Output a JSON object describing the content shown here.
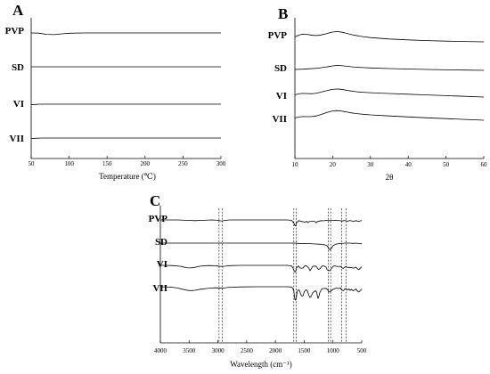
{
  "chart_data": [
    {
      "panel": "A",
      "type": "line",
      "xlabel": "Temperature (℃)",
      "ylabel": "",
      "xlim": [
        50,
        300
      ],
      "x_ticks": [
        "50",
        "100",
        "150",
        "200",
        "250",
        "300"
      ],
      "x_tick_values": [
        50,
        100,
        150,
        200,
        250,
        300
      ],
      "y_ticks_shown": false,
      "grid": false,
      "series": [
        {
          "name": "PVP",
          "x": [
            50,
            60,
            70,
            80,
            90,
            100,
            120,
            150,
            200,
            250,
            300
          ],
          "y": [
            0,
            -0.2,
            -1.6,
            -1.9,
            -1.0,
            -0.3,
            0,
            0,
            0,
            0,
            0
          ]
        },
        {
          "name": "SD",
          "x": [
            50,
            100,
            150,
            200,
            250,
            300
          ],
          "y": [
            0,
            0,
            0,
            0,
            0,
            0
          ]
        },
        {
          "name": "VI",
          "x": [
            50,
            55,
            60,
            100,
            150,
            200,
            250,
            300
          ],
          "y": [
            -0.5,
            -0.3,
            0,
            0,
            0,
            0,
            0,
            0
          ]
        },
        {
          "name": "VII",
          "x": [
            50,
            55,
            65,
            100,
            150,
            200,
            250,
            300
          ],
          "y": [
            -0.6,
            -0.3,
            0,
            0,
            0,
            0,
            0,
            0
          ]
        }
      ]
    },
    {
      "panel": "B",
      "type": "line",
      "xlabel": "2θ",
      "ylabel": "",
      "xlim": [
        10,
        60
      ],
      "x_ticks": [
        "10",
        "20",
        "30",
        "40",
        "50",
        "60"
      ],
      "x_tick_values": [
        10,
        20,
        30,
        40,
        50,
        60
      ],
      "y_ticks_shown": false,
      "grid": false,
      "series": [
        {
          "name": "PVP",
          "x": [
            10,
            11,
            12,
            13,
            14,
            15,
            16,
            17,
            18,
            19,
            20,
            21,
            22,
            23,
            24,
            25,
            26,
            27,
            28,
            30,
            35,
            40,
            45,
            50,
            55,
            60
          ],
          "y": [
            5.5,
            7.5,
            8.6,
            8.5,
            7.8,
            7.2,
            7.2,
            7.8,
            8.8,
            10.0,
            11.0,
            11.5,
            11.2,
            10.3,
            9.2,
            8.1,
            7.3,
            6.5,
            5.9,
            4.8,
            3.2,
            2.2,
            1.4,
            0.8,
            0.4,
            0
          ]
        },
        {
          "name": "SD",
          "x": [
            10,
            12,
            14,
            16,
            17,
            18,
            19,
            20,
            21,
            22,
            23,
            24,
            25,
            26,
            27,
            28,
            30,
            35,
            40,
            45,
            50,
            55,
            60
          ],
          "y": [
            1.0,
            1.3,
            1.8,
            2.4,
            3.0,
            3.6,
            4.3,
            5.0,
            5.5,
            5.4,
            5.0,
            4.5,
            4.0,
            3.6,
            3.3,
            3.1,
            2.7,
            2.0,
            1.5,
            1.0,
            0.6,
            0.3,
            0
          ]
        },
        {
          "name": "VI",
          "x": [
            10,
            11,
            12,
            13,
            14,
            15,
            16,
            17,
            18,
            19,
            20,
            21,
            22,
            23,
            24,
            25,
            26,
            27,
            28,
            30,
            35,
            40,
            45,
            50,
            55,
            60
          ],
          "y": [
            2.5,
            3.6,
            4.1,
            4.0,
            3.8,
            3.9,
            4.6,
            5.6,
            6.7,
            7.8,
            8.6,
            9.0,
            8.8,
            8.2,
            7.4,
            6.7,
            6.1,
            5.7,
            5.4,
            4.9,
            4.0,
            3.2,
            2.4,
            1.6,
            0.8,
            0
          ]
        },
        {
          "name": "VII",
          "x": [
            10,
            11,
            12,
            13,
            14,
            15,
            16,
            17,
            18,
            19,
            20,
            21,
            22,
            23,
            24,
            25,
            26,
            27,
            28,
            30,
            35,
            40,
            45,
            50,
            55,
            60
          ],
          "y": [
            2.5,
            3.6,
            4.1,
            4.0,
            4.0,
            4.3,
            5.2,
            6.5,
            8.0,
            9.4,
            10.4,
            10.8,
            10.5,
            9.8,
            9.0,
            8.2,
            7.6,
            7.1,
            6.7,
            6.0,
            4.8,
            3.7,
            2.7,
            1.8,
            0.9,
            0
          ]
        }
      ]
    },
    {
      "panel": "C",
      "type": "line",
      "xlabel": "Wavelength (cm⁻¹)",
      "ylabel": "",
      "xlim": [
        4000,
        500
      ],
      "x_ticks": [
        "4000",
        "3500",
        "3000",
        "2500",
        "2000",
        "1500",
        "1000",
        "500"
      ],
      "x_tick_values": [
        4000,
        3500,
        3000,
        2500,
        2000,
        1500,
        1000,
        500
      ],
      "y_ticks_shown": false,
      "grid": false,
      "reference_lines_x": [
        2980,
        2920,
        1680,
        1640,
        1080,
        1040,
        850,
        770
      ],
      "series": [
        {
          "name": "PVP",
          "x": [
            4000,
            3700,
            3500,
            3400,
            3300,
            3100,
            3000,
            2950,
            2920,
            2880,
            2800,
            2500,
            2200,
            2000,
            1800,
            1720,
            1680,
            1660,
            1650,
            1640,
            1600,
            1490,
            1460,
            1440,
            1420,
            1380,
            1320,
            1290,
            1270,
            1200,
            1170,
            1120,
            1080,
            1020,
            960,
            900,
            840,
            800,
            740,
            700,
            650,
            600,
            560,
            500
          ],
          "y": [
            0,
            0,
            -0.5,
            -0.8,
            -0.5,
            0,
            -0.4,
            -1.1,
            -1.0,
            -0.6,
            0,
            0,
            0,
            0,
            0,
            -0.4,
            -3.5,
            -6.5,
            -6.8,
            -4.0,
            -0.8,
            -2.5,
            -1.5,
            -3.0,
            -2.0,
            -1.5,
            -1.5,
            -3.2,
            -1.8,
            -0.8,
            -1.0,
            -0.5,
            -0.8,
            -0.6,
            -0.4,
            -0.6,
            -1.2,
            -0.6,
            -1.4,
            -0.6,
            -1.6,
            -0.8,
            -1.8,
            -0.6
          ]
        },
        {
          "name": "SD",
          "x": [
            4000,
            3500,
            3000,
            2500,
            2000,
            1800,
            1650,
            1600,
            1550,
            1500,
            1400,
            1300,
            1250,
            1200,
            1150,
            1100,
            1070,
            1050,
            1030,
            1000,
            950,
            900,
            850,
            800,
            700,
            650,
            600,
            550,
            500
          ],
          "y": [
            0,
            0,
            0,
            0,
            0,
            0,
            0,
            -0.3,
            -0.5,
            -0.4,
            -0.6,
            -1.0,
            -1.2,
            -1.4,
            -1.8,
            -3.0,
            -6.5,
            -7.5,
            -6.2,
            -3.0,
            -1.2,
            -0.6,
            -0.4,
            0,
            0,
            -0.3,
            0,
            -0.4,
            -0.8
          ]
        },
        {
          "name": "VI",
          "x": [
            4000,
            3800,
            3650,
            3600,
            3550,
            3500,
            3450,
            3400,
            3350,
            3300,
            3250,
            3150,
            3050,
            3000,
            2980,
            2950,
            2920,
            2880,
            2850,
            2800,
            2600,
            2300,
            2000,
            1800,
            1720,
            1690,
            1670,
            1660,
            1650,
            1630,
            1600,
            1580,
            1560,
            1520,
            1500,
            1490,
            1470,
            1450,
            1420,
            1400,
            1380,
            1350,
            1300,
            1280,
            1270,
            1250,
            1220,
            1200,
            1180,
            1150,
            1120,
            1100,
            1070,
            1050,
            1020,
            1000,
            980,
            960,
            940,
            900,
            870,
            850,
            820,
            800,
            780,
            760,
            740,
            720,
            700,
            680,
            650,
            620,
            600,
            580,
            550,
            520,
            500
          ],
          "y": [
            0,
            -0.2,
            -1.0,
            -1.8,
            -2.6,
            -2.9,
            -2.7,
            -2.2,
            -1.5,
            -0.9,
            -0.5,
            -0.2,
            -0.4,
            -0.8,
            -1.2,
            -1.0,
            -1.3,
            -1.0,
            -0.6,
            -0.3,
            0,
            0,
            0,
            0,
            -0.5,
            -3.5,
            -6.8,
            -7.5,
            -7.0,
            -2.5,
            -0.6,
            -2.5,
            -3.2,
            -3.0,
            -1.2,
            -0.6,
            -0.4,
            -1.2,
            -3.0,
            -6.0,
            -4.0,
            -1.0,
            -0.8,
            -2.0,
            -3.2,
            -4.5,
            -3.5,
            -1.5,
            -0.6,
            -0.8,
            -2.0,
            -5.0,
            -6.0,
            -5.8,
            -3.0,
            -1.2,
            -0.6,
            -0.8,
            -1.0,
            -1.4,
            -1.0,
            -2.5,
            -3.5,
            -2.2,
            -1.5,
            -1.8,
            -2.5,
            -2.0,
            -2.8,
            -2.2,
            -3.2,
            -2.6,
            -2.0,
            -3.5,
            -4.8,
            -2.8,
            -1.5
          ]
        },
        {
          "name": "VII",
          "x": [
            4000,
            3800,
            3700,
            3650,
            3600,
            3550,
            3500,
            3450,
            3400,
            3350,
            3300,
            3200,
            3100,
            3050,
            3000,
            2980,
            2950,
            2920,
            2880,
            2850,
            2800,
            2600,
            2300,
            2000,
            1800,
            1720,
            1700,
            1680,
            1670,
            1660,
            1650,
            1640,
            1620,
            1600,
            1580,
            1560,
            1540,
            1520,
            1500,
            1480,
            1460,
            1440,
            1420,
            1400,
            1380,
            1350,
            1300,
            1280,
            1270,
            1260,
            1250,
            1230,
            1200,
            1180,
            1160,
            1140,
            1120,
            1100,
            1080,
            1070,
            1060,
            1040,
            1000,
            960,
            940,
            900,
            870,
            850,
            820,
            800,
            780,
            760,
            740,
            720,
            700,
            680,
            650,
            620,
            600,
            580,
            550,
            520,
            500
          ],
          "y": [
            0,
            -0.5,
            -1.5,
            -2.2,
            -3.0,
            -3.8,
            -4.2,
            -4.3,
            -4.0,
            -3.5,
            -2.8,
            -2.0,
            -1.5,
            -1.2,
            -1.3,
            -1.8,
            -1.5,
            -1.8,
            -1.4,
            -1.0,
            -0.6,
            -0.2,
            0,
            0,
            0,
            -0.3,
            -1.5,
            -5.0,
            -10.0,
            -14.5,
            -15.0,
            -13.0,
            -5.0,
            -3.5,
            -4.5,
            -8.5,
            -10.5,
            -10.0,
            -6.0,
            -4.0,
            -3.5,
            -5.5,
            -9.5,
            -12.0,
            -11.0,
            -6.5,
            -4.5,
            -6.5,
            -11.0,
            -13.0,
            -12.0,
            -7.0,
            -3.0,
            -2.0,
            -2.0,
            -1.8,
            -2.0,
            -3.0,
            -4.5,
            -6.0,
            -5.8,
            -5.0,
            -3.0,
            -2.0,
            -1.5,
            -2.0,
            -1.5,
            -3.5,
            -4.5,
            -3.0,
            -2.0,
            -3.0,
            -3.5,
            -2.5,
            -4.0,
            -3.0,
            -4.5,
            -3.5,
            -2.5,
            -4.5,
            -6.0,
            -4.0,
            -2.5
          ]
        }
      ]
    }
  ]
}
